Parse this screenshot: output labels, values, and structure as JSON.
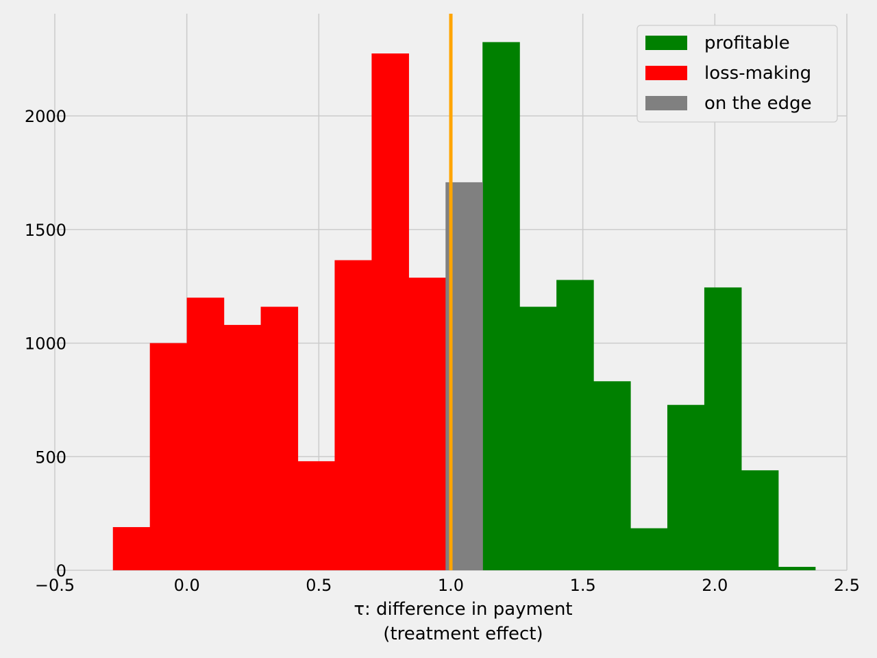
{
  "chart_data": {
    "type": "bar",
    "bin_edges": [
      -0.28,
      -0.14,
      0.0,
      0.14,
      0.28,
      0.42,
      0.56,
      0.7,
      0.84,
      0.98,
      1.12,
      1.26,
      1.4,
      1.54,
      1.68,
      1.82,
      1.96,
      2.1,
      2.24,
      2.38
    ],
    "series": [
      {
        "name": "profitable",
        "color": "#008000",
        "bins": [
          [
            1.12,
            1.26,
            2325
          ],
          [
            1.26,
            1.4,
            1160
          ],
          [
            1.4,
            1.54,
            1278
          ],
          [
            1.54,
            1.68,
            832
          ],
          [
            1.68,
            1.82,
            185
          ],
          [
            1.82,
            1.96,
            728
          ],
          [
            1.96,
            2.1,
            1245
          ],
          [
            2.1,
            2.24,
            440
          ],
          [
            2.24,
            2.38,
            15
          ]
        ]
      },
      {
        "name": "loss-making",
        "color": "#ff0000",
        "bins": [
          [
            -0.28,
            -0.14,
            190
          ],
          [
            -0.14,
            0.0,
            1000
          ],
          [
            0.0,
            0.14,
            1200
          ],
          [
            0.14,
            0.28,
            1080
          ],
          [
            0.28,
            0.42,
            1160
          ],
          [
            0.42,
            0.56,
            480
          ],
          [
            0.56,
            0.7,
            1365
          ],
          [
            0.7,
            0.84,
            2275
          ],
          [
            0.84,
            0.98,
            1288
          ]
        ]
      },
      {
        "name": "on the edge",
        "color": "#808080",
        "bins": [
          [
            0.98,
            1.12,
            1708
          ]
        ]
      }
    ],
    "vline": {
      "x": 1.0,
      "color": "#ffa500"
    },
    "xticks": [
      -0.5,
      0.0,
      0.5,
      1.0,
      1.5,
      2.0,
      2.5
    ],
    "xtick_labels": [
      "−0.5",
      "0.0",
      "0.5",
      "1.0",
      "1.5",
      "2.0",
      "2.5"
    ],
    "yticks": [
      0,
      500,
      1000,
      1500,
      2000
    ],
    "ytick_labels": [
      "0",
      "500",
      "1000",
      "1500",
      "2000"
    ],
    "xlim": [
      -0.5,
      2.5
    ],
    "ylim": [
      0,
      2450
    ],
    "xlabel_line1": "τ: difference in payment",
    "xlabel_line2": "(treatment effect)",
    "grid": true,
    "legend_position": "top-right",
    "legend": [
      "profitable",
      "loss-making",
      "on the edge"
    ]
  }
}
